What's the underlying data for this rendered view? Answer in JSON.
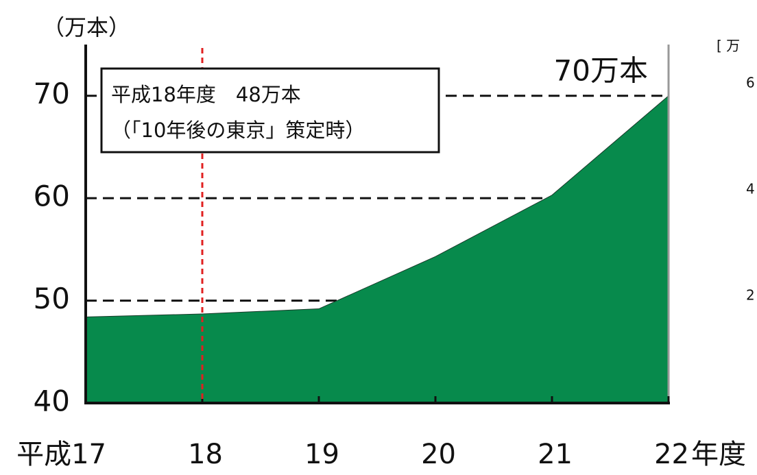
{
  "chart_data": {
    "type": "area",
    "y_unit_label": "（万本）",
    "x_unit_label": "年度",
    "categories": [
      "平成17",
      "18",
      "19",
      "20",
      "21",
      "22"
    ],
    "values": [
      48.4,
      48.7,
      49.2,
      54.3,
      60.3,
      70
    ],
    "color": "#078a4c",
    "ylim": [
      40,
      75
    ],
    "yticks": [
      40,
      50,
      60,
      70
    ],
    "grid": true,
    "reference_line": {
      "category": "18",
      "color": "#e02020"
    },
    "annotation": [
      "平成18年度　48万本",
      "（「10年後の東京」策定時）"
    ],
    "end_label": "70万本",
    "cropped_neighbor": {
      "unit": "[ 万",
      "ticks": [
        "6",
        "4",
        "2"
      ]
    }
  }
}
